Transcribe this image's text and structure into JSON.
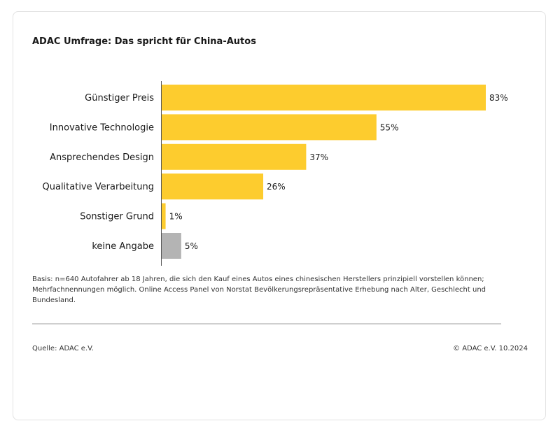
{
  "title": "ADAC Umfrage: Das spricht für China-Autos",
  "chart_data": {
    "type": "bar",
    "orientation": "horizontal",
    "categories": [
      "Günstiger Preis",
      "Innovative Technologie",
      "Ansprechendes Design",
      "Qualitative Verarbeitung",
      "Sonstiger Grund",
      "keine Angabe"
    ],
    "values": [
      83,
      55,
      37,
      26,
      1,
      5
    ],
    "value_labels": [
      "83%",
      "55%",
      "37%",
      "26%",
      "1%",
      "5%"
    ],
    "bar_colors": [
      "#FDCC2E",
      "#FDCC2E",
      "#FDCC2E",
      "#FDCC2E",
      "#FDCC2E",
      "#B4B4B4"
    ],
    "unit": "%",
    "xlim": [
      0,
      83
    ],
    "grid": false,
    "legend": "none"
  },
  "footnote": "Basis: n=640 Autofahrer ab 18 Jahren, die sich den Kauf eines Autos eines chinesischen Herstellers prinzipiell vorstellen können; Mehrfachnennungen möglich. Online Access Panel von Norstat Bevölkerungsrepräsentative Erhebung nach Alter, Geschlecht und Bundesland.",
  "source": "Quelle: ADAC e.V.",
  "copyright": "© ADAC e.V. 10.2024"
}
